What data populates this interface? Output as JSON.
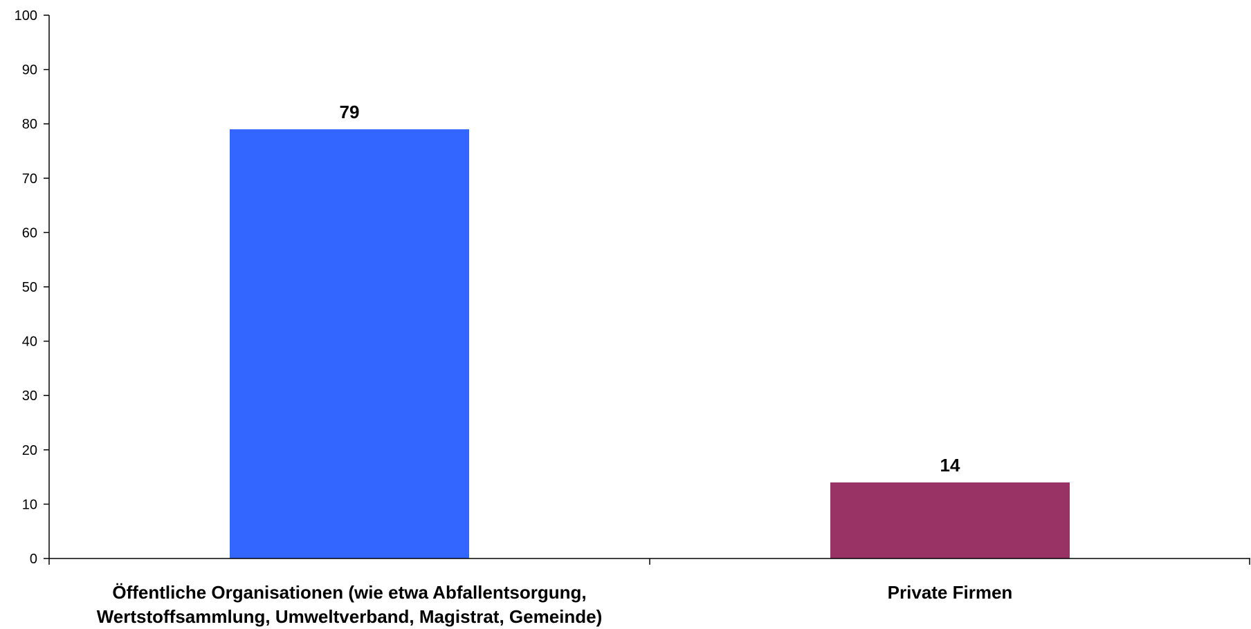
{
  "chart_data": {
    "type": "bar",
    "categories": [
      [
        "Öffentliche Organisationen (wie etwa Abfallentsorgung,",
        "Wertstoffsammlung, Umweltverband, Magistrat, Gemeinde)"
      ],
      [
        "Private  Firmen"
      ]
    ],
    "values": [
      79,
      14
    ],
    "data_labels": [
      "79",
      "14"
    ],
    "colors": [
      "#3366FF",
      "#993366"
    ],
    "ylim": [
      0,
      100
    ],
    "yticks": [
      0,
      10,
      20,
      30,
      40,
      50,
      60,
      70,
      80,
      90,
      100
    ],
    "ytick_labels": [
      "0",
      "10",
      "20",
      "30",
      "40",
      "50",
      "60",
      "70",
      "80",
      "90",
      "100"
    ],
    "title": "",
    "xlabel": "",
    "ylabel": "",
    "grid": false,
    "legend": "none"
  }
}
